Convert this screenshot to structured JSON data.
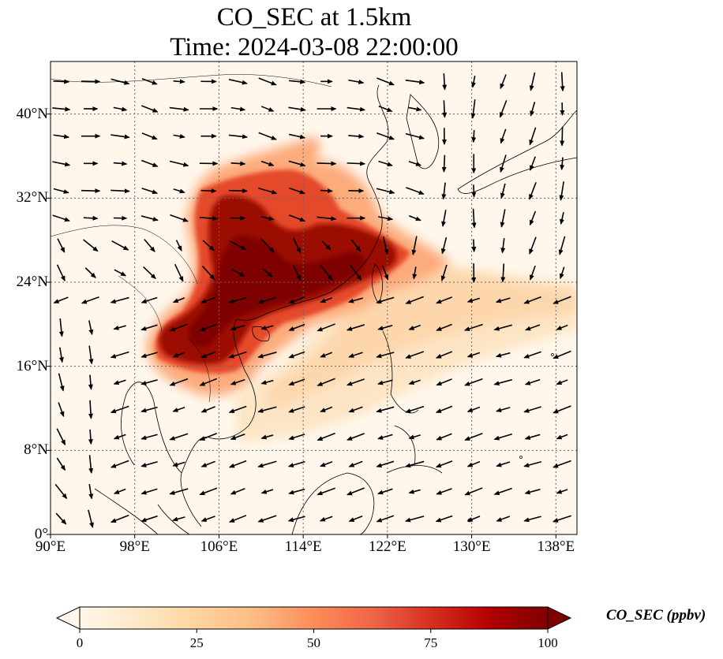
{
  "title": {
    "line1": "CO_SEC at 1.5km",
    "line2": "Time: 2024-03-08 22:00:00"
  },
  "map": {
    "projection": "PlateCarree",
    "lon_range": [
      90,
      140
    ],
    "lat_range": [
      0,
      45
    ],
    "gridlines": true,
    "x_ticks": [
      "90°E",
      "98°E",
      "106°E",
      "114°E",
      "122°E",
      "130°E",
      "138°E"
    ],
    "x_tick_values": [
      90,
      98,
      106,
      114,
      122,
      130,
      138
    ],
    "y_ticks": [
      "0°",
      "8°N",
      "16°N",
      "24°N",
      "32°N",
      "40°N"
    ],
    "y_tick_values": [
      0,
      8,
      16,
      24,
      32,
      40
    ],
    "field_variable": "CO_SEC",
    "plume_core": "southern China, northern Indochina and East China Sea (~102–125°E, 16–33°N), values near 100 ppbv",
    "wind_vectors": "westerly/northwesterly north of 28°N, northeasterly to easterly south of 24°N"
  },
  "colorbar": {
    "label": "CO_SEC (ppbv)",
    "ticks": [
      "0",
      "25",
      "50",
      "75",
      "100"
    ],
    "tick_values": [
      0,
      25,
      50,
      75,
      100
    ],
    "range": [
      0,
      100
    ],
    "colormap": "OrRd",
    "extend": "both",
    "colors": [
      "#fff7ec",
      "#fee8c8",
      "#fdd49e",
      "#fdbb84",
      "#fc8d59",
      "#ef6548",
      "#d7301f",
      "#b30000",
      "#7f0000"
    ]
  }
}
